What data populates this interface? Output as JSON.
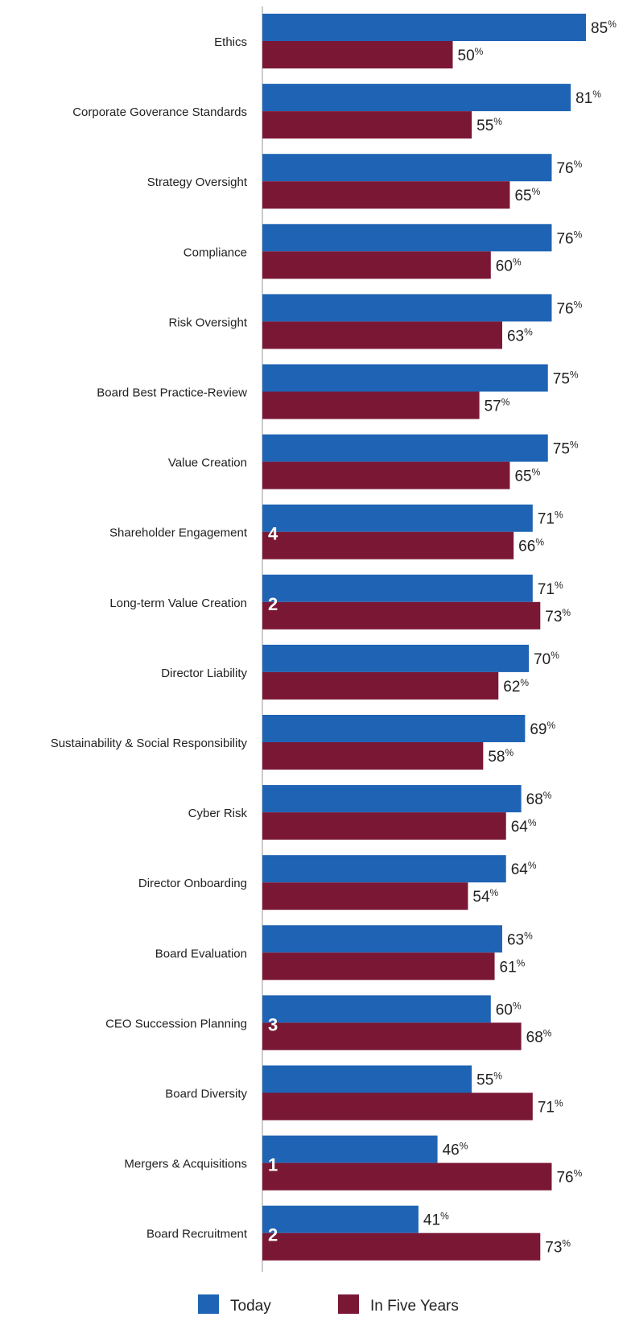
{
  "chart_data": {
    "type": "bar",
    "orientation": "horizontal",
    "categories": [
      "Ethics",
      "Corporate Goverance Standards",
      "Strategy Oversight",
      "Compliance",
      "Risk Oversight",
      "Board Best Practice-Review",
      "Value Creation",
      "Shareholder Engagement",
      "Long-term Value Creation",
      "Director Liability",
      "Sustainability & Social Responsibility",
      "Cyber Risk",
      "Director Onboarding",
      "Board Evaluation",
      "CEO Succession Planning",
      "Board Diversity",
      "Mergers & Acquisitions",
      "Board Recruitment"
    ],
    "series": [
      {
        "name": "Today",
        "color": "#1f64b4",
        "values": [
          85,
          81,
          76,
          76,
          76,
          75,
          75,
          71,
          71,
          70,
          69,
          68,
          64,
          63,
          60,
          55,
          46,
          41
        ]
      },
      {
        "name": "In Five Years",
        "color": "#7a1735",
        "values": [
          50,
          55,
          65,
          60,
          63,
          57,
          65,
          66,
          73,
          62,
          58,
          64,
          54,
          61,
          68,
          71,
          76,
          73
        ]
      }
    ],
    "value_suffix": "%",
    "rank_labels": [
      "",
      "",
      "",
      "",
      "",
      "",
      "",
      "4",
      "2",
      "",
      "",
      "",
      "",
      "",
      "3",
      "",
      "1",
      "2"
    ],
    "xlim": [
      0,
      100
    ],
    "grid": false,
    "legend_position": "bottom",
    "title": "",
    "xlabel": "",
    "ylabel": ""
  }
}
